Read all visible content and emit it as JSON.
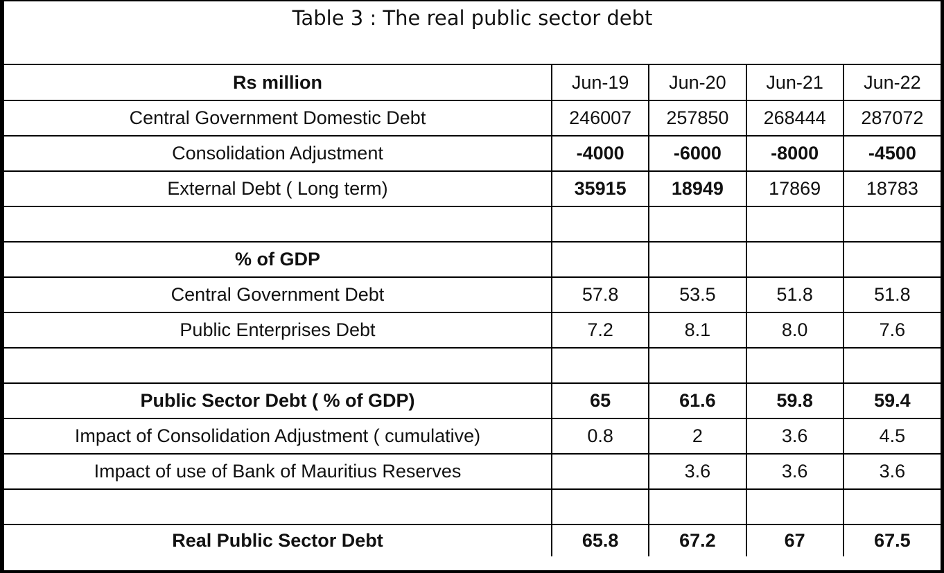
{
  "title": "Table 3 : The real public sector debt",
  "columns": [
    "Jun-19",
    "Jun-20",
    "Jun-21",
    "Jun-22"
  ],
  "rows": [
    {
      "label": "Rs million",
      "bold_label": true,
      "values": [
        "Jun-19",
        "Jun-20",
        "Jun-21",
        "Jun-22"
      ],
      "bold_values": [
        false,
        false,
        false,
        false
      ]
    },
    {
      "label": "Central Government Domestic Debt",
      "bold_label": false,
      "values": [
        "246007",
        "257850",
        "268444",
        "287072"
      ],
      "bold_values": [
        false,
        false,
        false,
        false
      ]
    },
    {
      "label": "Consolidation Adjustment",
      "bold_label": false,
      "values": [
        "-4000",
        "-6000",
        "-8000",
        "-4500"
      ],
      "bold_values": [
        true,
        true,
        true,
        true
      ]
    },
    {
      "label": "External Debt ( Long term)",
      "bold_label": false,
      "values": [
        "35915",
        "18949",
        "17869",
        "18783"
      ],
      "bold_values": [
        true,
        true,
        false,
        false
      ]
    },
    {
      "label": "",
      "bold_label": false,
      "values": [
        "",
        "",
        "",
        ""
      ],
      "bold_values": [
        false,
        false,
        false,
        false
      ]
    },
    {
      "label": "% of GDP",
      "bold_label": true,
      "values": [
        "",
        "",
        "",
        ""
      ],
      "bold_values": [
        false,
        false,
        false,
        false
      ]
    },
    {
      "label": "Central Government Debt",
      "bold_label": false,
      "values": [
        "57.8",
        "53.5",
        "51.8",
        "51.8"
      ],
      "bold_values": [
        false,
        false,
        false,
        false
      ]
    },
    {
      "label": "Public Enterprises Debt",
      "bold_label": false,
      "values": [
        "7.2",
        "8.1",
        "8.0",
        "7.6"
      ],
      "bold_values": [
        false,
        false,
        false,
        false
      ]
    },
    {
      "label": "",
      "bold_label": false,
      "values": [
        "",
        "",
        "",
        ""
      ],
      "bold_values": [
        false,
        false,
        false,
        false
      ]
    },
    {
      "label": "Public Sector Debt ( % of GDP)",
      "bold_label": true,
      "values": [
        "65",
        "61.6",
        "59.8",
        "59.4"
      ],
      "bold_values": [
        true,
        true,
        true,
        true
      ]
    },
    {
      "label": "Impact of  Consolidation Adjustment ( cumulative)",
      "bold_label": false,
      "values": [
        "0.8",
        "2",
        "3.6",
        "4.5"
      ],
      "bold_values": [
        false,
        false,
        false,
        false
      ]
    },
    {
      "label": "Impact of use of Bank of Mauritius Reserves",
      "bold_label": false,
      "values": [
        "",
        "3.6",
        "3.6",
        "3.6"
      ],
      "bold_values": [
        false,
        false,
        false,
        false
      ]
    },
    {
      "label": "",
      "bold_label": false,
      "values": [
        "",
        "",
        "",
        ""
      ],
      "bold_values": [
        false,
        false,
        false,
        false
      ]
    },
    {
      "label": "Real Public Sector Debt",
      "bold_label": true,
      "values": [
        "65.8",
        "67.2",
        "67",
        "67.5"
      ],
      "bold_values": [
        true,
        true,
        true,
        true
      ]
    }
  ]
}
